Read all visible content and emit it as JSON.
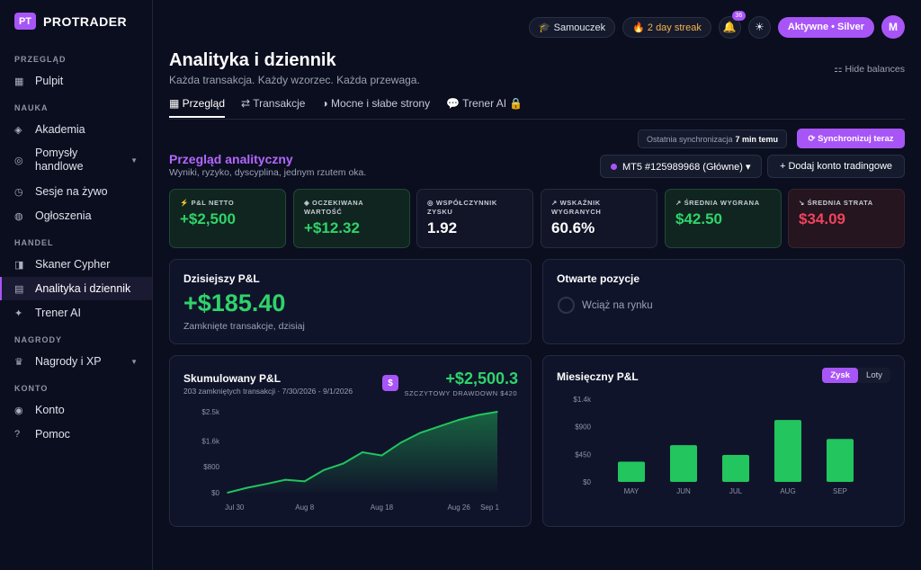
{
  "brand": {
    "badge": "PT",
    "name": "PROTRADER"
  },
  "sidebar": {
    "sections": [
      {
        "label": "PRZEGLĄD"
      },
      {
        "label": "NAUKA"
      },
      {
        "label": "HANDEL"
      },
      {
        "label": "NAGRODY"
      },
      {
        "label": "KONTO"
      }
    ],
    "items": [
      {
        "label": "Pulpit",
        "icon": "grid-icon"
      },
      {
        "label": "Akademia",
        "icon": "diamond-icon"
      },
      {
        "label": "Pomysły handlowe",
        "icon": "lightbulb-icon"
      },
      {
        "label": "Sesje na żywo",
        "icon": "clock-icon"
      },
      {
        "label": "Ogłoszenia",
        "icon": "globe-icon"
      },
      {
        "label": "Skaner Cypher",
        "icon": "scanner-icon"
      },
      {
        "label": "Analityka i dziennik",
        "icon": "journal-icon",
        "active": true
      },
      {
        "label": "Trener AI",
        "icon": "sparkle-icon"
      },
      {
        "label": "Nagrody i XP",
        "icon": "crown-icon"
      },
      {
        "label": "Konto",
        "icon": "user-icon"
      },
      {
        "label": "Pomoc",
        "icon": "help-icon"
      }
    ]
  },
  "topbar": {
    "level": "🎓 Samouczek",
    "streak": "🔥 2 day streak",
    "notifications": "36",
    "plan": "Aktywne • Silver",
    "avatar": "M"
  },
  "page": {
    "title": "Analityka i dziennik",
    "subtitle": "Każda transakcja. Każdy wzorzec. Każda przewaga.",
    "hide_balances": "⚏ Hide balances"
  },
  "tabs": [
    {
      "label": "▦ Przegląd"
    },
    {
      "label": "⇄ Transakcje"
    },
    {
      "label": "◑ Mocne i słabe strony"
    },
    {
      "label": "💬 Trener AI 🔒"
    }
  ],
  "sync": {
    "label": "Ostatnia synchronizacja",
    "time": "7 min temu",
    "button": "⟳ Synchronizuj teraz"
  },
  "analytics": {
    "title": "Przegląd analityczny",
    "subtitle": "Wyniki, ryzyko, dyscyplina, jednym rzutem oka.",
    "account": "MT5 #125989968 (Główne) ▾",
    "add_account": "+ Dodaj konto tradingowe"
  },
  "kpis": [
    {
      "label": "⚡ P&L NETTO",
      "value": "+$2,500",
      "tone": "green"
    },
    {
      "label": "◈ OCZEKIWANA WARTOŚĆ",
      "value": "+$12.32",
      "tone": "green"
    },
    {
      "label": "◎ WSPÓŁCZYNNIK ZYSKU",
      "value": "1.92",
      "tone": "neutral"
    },
    {
      "label": "↗ WSKAŹNIK WYGRANYCH",
      "value": "60.6%",
      "tone": "neutral"
    },
    {
      "label": "↗ ŚREDNIA WYGRANA",
      "value": "$42.50",
      "tone": "green"
    },
    {
      "label": "↘ ŚREDNIA STRATA",
      "value": "$34.09",
      "tone": "red"
    }
  ],
  "today": {
    "title": "Dzisiejszy P&L",
    "value": "+$185.40",
    "subtitle": "Zamknięte transakcje, dzisiaj"
  },
  "open": {
    "title": "Otwarte pozycje",
    "status": "Wciąż na rynku"
  },
  "cumulative": {
    "title": "Skumulowany P&L",
    "subtitle": "203 zamkniętych transakcji · 7/30/2026 - 9/1/2026",
    "value": "+$2,500.3",
    "drawdown": "SZCZYTOWY DRAWDOWN $420",
    "icon": "$"
  },
  "monthly": {
    "title": "Miesięczny P&L",
    "toggle_profit": "Zysk",
    "toggle_lots": "Loty"
  },
  "chart_data": [
    {
      "type": "area",
      "title": "Skumulowany P&L",
      "x": [
        "Jul 30",
        "Aug 1",
        "Aug 3",
        "Aug 5",
        "Aug 8",
        "Aug 10",
        "Aug 13",
        "Aug 16",
        "Aug 18",
        "Aug 20",
        "Aug 22",
        "Aug 24",
        "Aug 26",
        "Aug 28",
        "Sep 1"
      ],
      "y": [
        0,
        150,
        270,
        400,
        350,
        700,
        900,
        1250,
        1150,
        1550,
        1850,
        2050,
        2250,
        2400,
        2500
      ],
      "x_ticks": [
        "Jul 30",
        "Aug 8",
        "Aug 18",
        "Aug 26",
        "Sep 1"
      ],
      "y_ticks": [
        {
          "v": 0,
          "label": "$0"
        },
        {
          "v": 800,
          "label": "$800"
        },
        {
          "v": 1600,
          "label": "$1.6k"
        },
        {
          "v": 2500,
          "label": "$2.5k"
        }
      ],
      "ylim": [
        0,
        2500
      ],
      "color": "#22c55e"
    },
    {
      "type": "bar",
      "title": "Miesięczny P&L",
      "categories": [
        "MAY",
        "JUN",
        "JUL",
        "AUG",
        "SEP"
      ],
      "values": [
        330,
        600,
        440,
        1010,
        700
      ],
      "y_ticks": [
        {
          "v": 0,
          "label": "$0"
        },
        {
          "v": 450,
          "label": "$450"
        },
        {
          "v": 900,
          "label": "$900"
        },
        {
          "v": 1350,
          "label": "$1.4k"
        }
      ],
      "ylim": [
        0,
        1350
      ],
      "color": "#22c55e"
    }
  ]
}
